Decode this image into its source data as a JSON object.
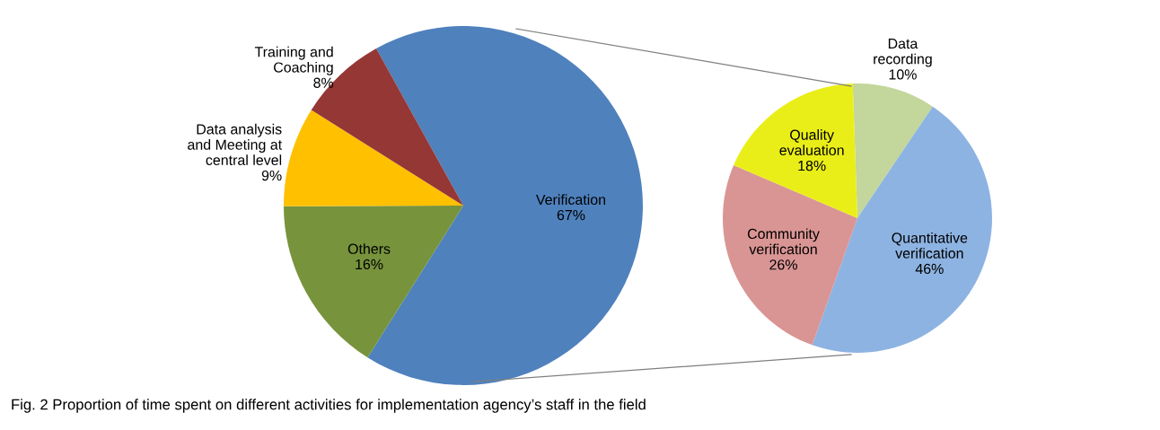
{
  "chart_data": [
    {
      "type": "pie",
      "categories": [
        "Verification",
        "Others",
        "Data analysis\nand Meeting at\ncentral level",
        "Training and\nCoaching"
      ],
      "values": [
        67,
        16,
        9,
        8
      ],
      "value_labels": [
        "67%",
        "16%",
        "9%",
        "8%"
      ],
      "colors": [
        "#4f81bd",
        "#77933c",
        "#ffc000",
        "#953735"
      ],
      "annotations": [
        "Fig. 2 Proportion of time spent on different activities for implementation agency’s staff in the field"
      ]
    },
    {
      "type": "pie",
      "categories": [
        "Data\nrecording",
        "Quantitative\nverification",
        "Community\nverification",
        "Quality\nevaluation"
      ],
      "values": [
        10,
        46,
        26,
        18
      ],
      "value_labels": [
        "10%",
        "46%",
        "26%",
        "18%"
      ],
      "colors": [
        "#c3d69b",
        "#8db3e2",
        "#d99594",
        "#eaee18"
      ]
    }
  ]
}
